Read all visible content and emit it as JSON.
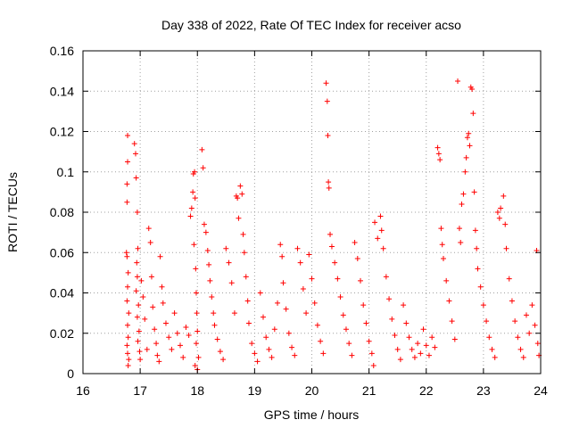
{
  "chart_data": {
    "type": "scatter",
    "title": "Day 338 of 2022, Rate Of TEC Index for receiver acso",
    "xlabel": "GPS time / hours",
    "ylabel": "ROTI / TECUs",
    "xlim": [
      16,
      24
    ],
    "ylim": [
      0,
      0.16
    ],
    "x_ticks": [
      "16",
      "17",
      "18",
      "19",
      "20",
      "21",
      "22",
      "23",
      "24"
    ],
    "y_ticks": [
      "0",
      "0.02",
      "0.04",
      "0.06",
      "0.08",
      "0.1",
      "0.12",
      "0.14",
      "0.16"
    ],
    "grid": true,
    "marker": "plus",
    "color": "#ff0000",
    "series": [
      {
        "points": [
          [
            16.78,
            0.118
          ],
          [
            16.78,
            0.105
          ],
          [
            16.77,
            0.094
          ],
          [
            16.77,
            0.085
          ],
          [
            16.76,
            0.06
          ],
          [
            16.77,
            0.058
          ],
          [
            16.79,
            0.05
          ],
          [
            16.78,
            0.043
          ],
          [
            16.77,
            0.036
          ],
          [
            16.8,
            0.03
          ],
          [
            16.78,
            0.024
          ],
          [
            16.79,
            0.018
          ],
          [
            16.77,
            0.014
          ],
          [
            16.78,
            0.01
          ],
          [
            16.8,
            0.007
          ],
          [
            16.79,
            0.004
          ],
          [
            16.9,
            0.114
          ],
          [
            16.92,
            0.109
          ],
          [
            16.93,
            0.097
          ],
          [
            16.95,
            0.08
          ],
          [
            16.96,
            0.062
          ],
          [
            16.94,
            0.055
          ],
          [
            16.95,
            0.048
          ],
          [
            16.93,
            0.041
          ],
          [
            16.97,
            0.034
          ],
          [
            16.95,
            0.028
          ],
          [
            16.98,
            0.021
          ],
          [
            16.96,
            0.016
          ],
          [
            16.99,
            0.011
          ],
          [
            17.0,
            0.007
          ],
          [
            17.02,
            0.046
          ],
          [
            17.05,
            0.038
          ],
          [
            17.08,
            0.027
          ],
          [
            17.12,
            0.012
          ],
          [
            17.15,
            0.072
          ],
          [
            17.18,
            0.065
          ],
          [
            17.2,
            0.048
          ],
          [
            17.22,
            0.033
          ],
          [
            17.25,
            0.022
          ],
          [
            17.28,
            0.015
          ],
          [
            17.3,
            0.009
          ],
          [
            17.33,
            0.006
          ],
          [
            17.35,
            0.058
          ],
          [
            17.38,
            0.043
          ],
          [
            17.4,
            0.035
          ],
          [
            17.45,
            0.025
          ],
          [
            17.5,
            0.018
          ],
          [
            17.55,
            0.012
          ],
          [
            17.6,
            0.03
          ],
          [
            17.65,
            0.02
          ],
          [
            17.7,
            0.014
          ],
          [
            17.75,
            0.008
          ],
          [
            17.8,
            0.023
          ],
          [
            17.85,
            0.019
          ],
          [
            17.88,
            0.078
          ],
          [
            17.9,
            0.082
          ],
          [
            17.92,
            0.09
          ],
          [
            17.93,
            0.099
          ],
          [
            17.95,
            0.1
          ],
          [
            17.96,
            0.087
          ],
          [
            17.94,
            0.064
          ],
          [
            17.97,
            0.052
          ],
          [
            17.98,
            0.04
          ],
          [
            17.99,
            0.03
          ],
          [
            18.0,
            0.021
          ],
          [
            17.98,
            0.015
          ],
          [
            18.02,
            0.008
          ],
          [
            17.96,
            0.004
          ],
          [
            18.0,
            0.002
          ],
          [
            18.08,
            0.111
          ],
          [
            18.1,
            0.102
          ],
          [
            18.12,
            0.074
          ],
          [
            18.15,
            0.07
          ],
          [
            18.18,
            0.061
          ],
          [
            18.2,
            0.054
          ],
          [
            18.22,
            0.046
          ],
          [
            18.25,
            0.038
          ],
          [
            18.28,
            0.03
          ],
          [
            18.3,
            0.024
          ],
          [
            18.35,
            0.017
          ],
          [
            18.4,
            0.011
          ],
          [
            18.45,
            0.007
          ],
          [
            18.5,
            0.062
          ],
          [
            18.55,
            0.055
          ],
          [
            18.6,
            0.045
          ],
          [
            18.65,
            0.03
          ],
          [
            18.68,
            0.088
          ],
          [
            18.7,
            0.087
          ],
          [
            18.72,
            0.077
          ],
          [
            18.75,
            0.093
          ],
          [
            18.78,
            0.089
          ],
          [
            18.8,
            0.069
          ],
          [
            18.82,
            0.06
          ],
          [
            18.85,
            0.048
          ],
          [
            18.88,
            0.036
          ],
          [
            18.9,
            0.025
          ],
          [
            18.95,
            0.015
          ],
          [
            19.0,
            0.01
          ],
          [
            19.05,
            0.006
          ],
          [
            19.1,
            0.04
          ],
          [
            19.15,
            0.028
          ],
          [
            19.2,
            0.018
          ],
          [
            19.25,
            0.012
          ],
          [
            19.3,
            0.008
          ],
          [
            19.35,
            0.022
          ],
          [
            19.4,
            0.035
          ],
          [
            19.45,
            0.064
          ],
          [
            19.48,
            0.058
          ],
          [
            19.5,
            0.045
          ],
          [
            19.55,
            0.032
          ],
          [
            19.6,
            0.02
          ],
          [
            19.65,
            0.013
          ],
          [
            19.7,
            0.009
          ],
          [
            19.75,
            0.062
          ],
          [
            19.8,
            0.055
          ],
          [
            19.85,
            0.042
          ],
          [
            19.9,
            0.03
          ],
          [
            19.95,
            0.059
          ],
          [
            20.0,
            0.047
          ],
          [
            20.05,
            0.035
          ],
          [
            20.1,
            0.024
          ],
          [
            20.15,
            0.016
          ],
          [
            20.2,
            0.01
          ],
          [
            20.25,
            0.144
          ],
          [
            20.27,
            0.135
          ],
          [
            20.28,
            0.118
          ],
          [
            20.29,
            0.095
          ],
          [
            20.3,
            0.092
          ],
          [
            20.32,
            0.069
          ],
          [
            20.35,
            0.063
          ],
          [
            20.4,
            0.055
          ],
          [
            20.45,
            0.047
          ],
          [
            20.5,
            0.038
          ],
          [
            20.55,
            0.029
          ],
          [
            20.6,
            0.022
          ],
          [
            20.65,
            0.015
          ],
          [
            20.7,
            0.009
          ],
          [
            20.75,
            0.065
          ],
          [
            20.8,
            0.057
          ],
          [
            20.85,
            0.046
          ],
          [
            20.9,
            0.034
          ],
          [
            20.95,
            0.025
          ],
          [
            21.0,
            0.016
          ],
          [
            21.05,
            0.01
          ],
          [
            21.08,
            0.004
          ],
          [
            21.1,
            0.075
          ],
          [
            21.15,
            0.067
          ],
          [
            21.2,
            0.078
          ],
          [
            21.22,
            0.071
          ],
          [
            21.25,
            0.062
          ],
          [
            21.3,
            0.048
          ],
          [
            21.35,
            0.037
          ],
          [
            21.4,
            0.027
          ],
          [
            21.45,
            0.019
          ],
          [
            21.5,
            0.012
          ],
          [
            21.55,
            0.007
          ],
          [
            21.6,
            0.034
          ],
          [
            21.65,
            0.025
          ],
          [
            21.7,
            0.018
          ],
          [
            21.75,
            0.012
          ],
          [
            21.8,
            0.008
          ],
          [
            21.85,
            0.015
          ],
          [
            21.9,
            0.01
          ],
          [
            21.95,
            0.022
          ],
          [
            22.0,
            0.014
          ],
          [
            22.05,
            0.009
          ],
          [
            22.1,
            0.018
          ],
          [
            22.15,
            0.013
          ],
          [
            22.2,
            0.112
          ],
          [
            22.22,
            0.109
          ],
          [
            22.24,
            0.106
          ],
          [
            22.26,
            0.072
          ],
          [
            22.28,
            0.064
          ],
          [
            22.3,
            0.057
          ],
          [
            22.35,
            0.046
          ],
          [
            22.4,
            0.036
          ],
          [
            22.45,
            0.026
          ],
          [
            22.5,
            0.017
          ],
          [
            22.55,
            0.145
          ],
          [
            22.58,
            0.072
          ],
          [
            22.6,
            0.065
          ],
          [
            22.62,
            0.084
          ],
          [
            22.65,
            0.089
          ],
          [
            22.68,
            0.1
          ],
          [
            22.7,
            0.107
          ],
          [
            22.72,
            0.117
          ],
          [
            22.74,
            0.119
          ],
          [
            22.76,
            0.113
          ],
          [
            22.78,
            0.142
          ],
          [
            22.8,
            0.141
          ],
          [
            22.82,
            0.129
          ],
          [
            22.84,
            0.09
          ],
          [
            22.86,
            0.071
          ],
          [
            22.88,
            0.062
          ],
          [
            22.9,
            0.052
          ],
          [
            22.95,
            0.043
          ],
          [
            23.0,
            0.034
          ],
          [
            23.05,
            0.026
          ],
          [
            23.1,
            0.018
          ],
          [
            23.15,
            0.012
          ],
          [
            23.2,
            0.008
          ],
          [
            23.25,
            0.08
          ],
          [
            23.28,
            0.077
          ],
          [
            23.3,
            0.082
          ],
          [
            23.35,
            0.088
          ],
          [
            23.38,
            0.074
          ],
          [
            23.4,
            0.062
          ],
          [
            23.45,
            0.047
          ],
          [
            23.5,
            0.036
          ],
          [
            23.55,
            0.026
          ],
          [
            23.6,
            0.018
          ],
          [
            23.65,
            0.012
          ],
          [
            23.7,
            0.008
          ],
          [
            23.75,
            0.029
          ],
          [
            23.8,
            0.02
          ],
          [
            23.85,
            0.034
          ],
          [
            23.9,
            0.024
          ],
          [
            23.93,
            0.061
          ],
          [
            23.95,
            0.015
          ],
          [
            23.97,
            0.009
          ]
        ]
      }
    ]
  }
}
